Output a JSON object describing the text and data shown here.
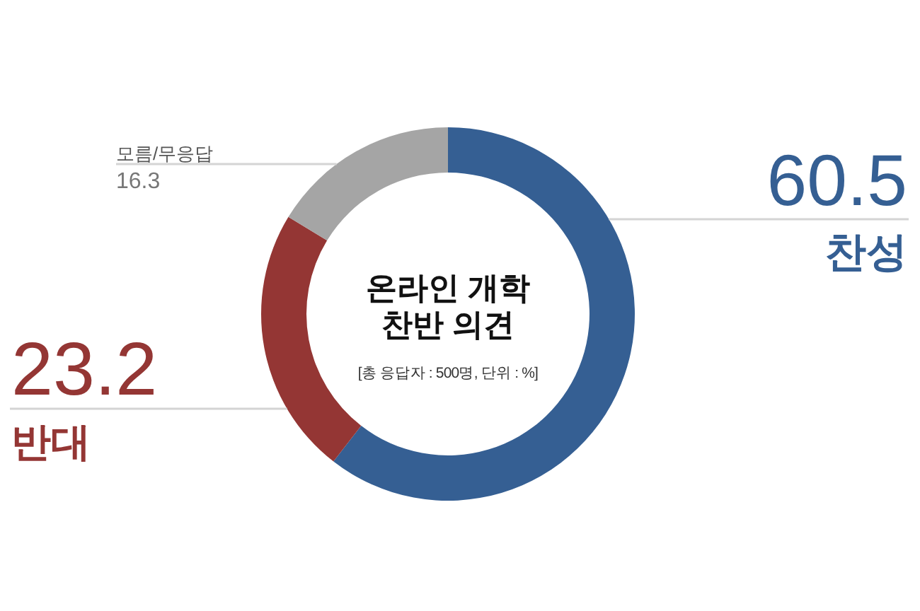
{
  "chart_data": {
    "type": "donut",
    "title": "온라인 개학 찬반 의견",
    "subtitle": "[총 응답자 : 500명, 단위 : %]",
    "categories": [
      "찬성",
      "반대",
      "모름/무응답"
    ],
    "values": [
      60.5,
      23.2,
      16.3
    ],
    "colors": [
      "#355f93",
      "#943634",
      "#a5a5a5"
    ],
    "data_labels": true
  }
}
